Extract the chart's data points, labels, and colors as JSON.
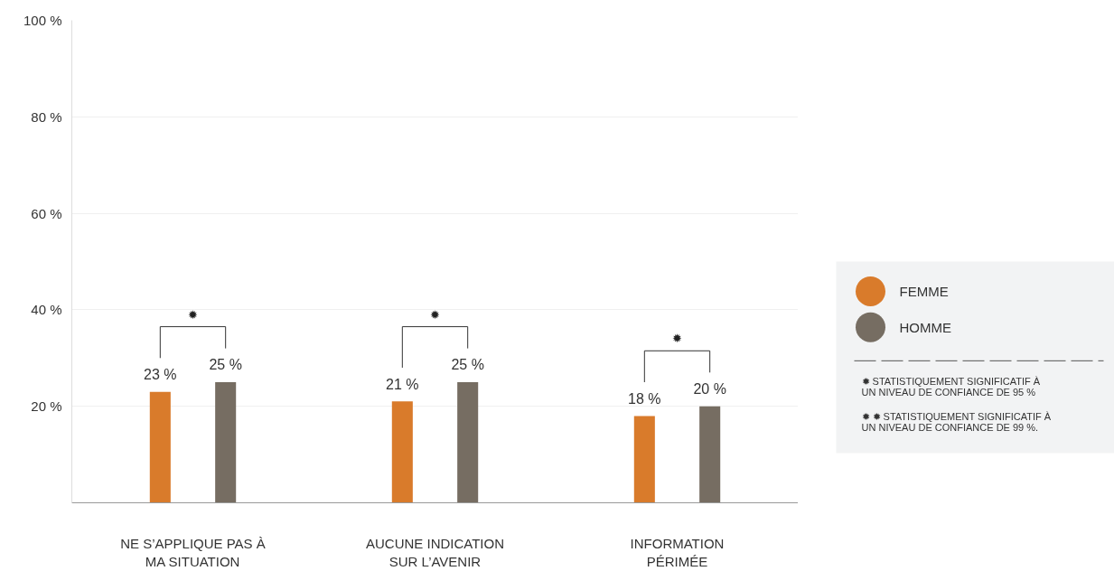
{
  "chart_data": {
    "type": "bar",
    "categories": [
      "NE S’APPLIQUE PAS À\nMA SITUATION",
      "AUCUNE INDICATION\nSUR L’AVENIR",
      "INFORMATION\nPÉRIMÉE"
    ],
    "series": [
      {
        "name": "FEMME",
        "color": "#d97b2b",
        "values": [
          23,
          21,
          18
        ],
        "value_labels": [
          "23 %",
          "21 %",
          "18 %"
        ]
      },
      {
        "name": "HOMME",
        "color": "#766d62",
        "values": [
          25,
          25,
          20
        ],
        "value_labels": [
          "25 %",
          "25 %",
          "20 %"
        ]
      }
    ],
    "ylim": [
      0,
      100
    ],
    "yticks": [
      {
        "value": 20,
        "label": "20 %"
      },
      {
        "value": 40,
        "label": "40 %"
      },
      {
        "value": 60,
        "label": "60 %"
      },
      {
        "value": 80,
        "label": "80 %"
      },
      {
        "value": 100,
        "label": "100 %"
      }
    ],
    "grid": "y",
    "legend": "right",
    "annotations": [
      "✹",
      "✹",
      "✹",
      "✹      STATISTIQUEMENT SIGNIFICATIF À\n          UN NIVEAU DE CONFIANCE DE 95 %",
      "✹ ✹   STATISTIQUEMENT SIGNIFICATIF À\n          UN NIVEAU DE CONFIANCE DE 99 %."
    ]
  }
}
